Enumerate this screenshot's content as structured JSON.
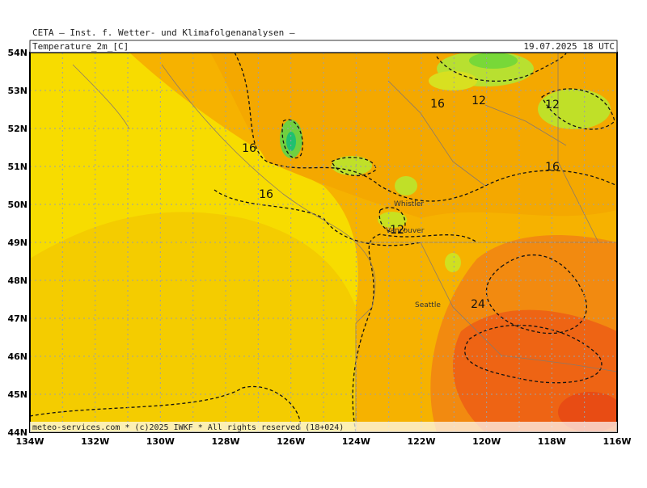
{
  "header": {
    "source": "CETA — Inst. f. Wetter- und Klimafolgenanalysen —",
    "title": "Temperature_2m_[C]",
    "valid": "19.07.2025 18 UTC"
  },
  "axes": {
    "lat_labels": [
      "54N",
      "53N",
      "52N",
      "51N",
      "50N",
      "49N",
      "48N",
      "47N",
      "46N",
      "45N",
      "44N"
    ],
    "lon_labels": [
      "134W",
      "132W",
      "130W",
      "128W",
      "126W",
      "124W",
      "122W",
      "120W",
      "118W",
      "116W"
    ]
  },
  "contour_labels": [
    "16",
    "16",
    "16",
    "12",
    "12",
    "16",
    "12",
    "24"
  ],
  "cities": [
    "Whistler",
    "Vancouver",
    "Seattle"
  ],
  "footer": "meteo-services.com * (c)2025 IWKF * All rights reserved (18+024)"
}
